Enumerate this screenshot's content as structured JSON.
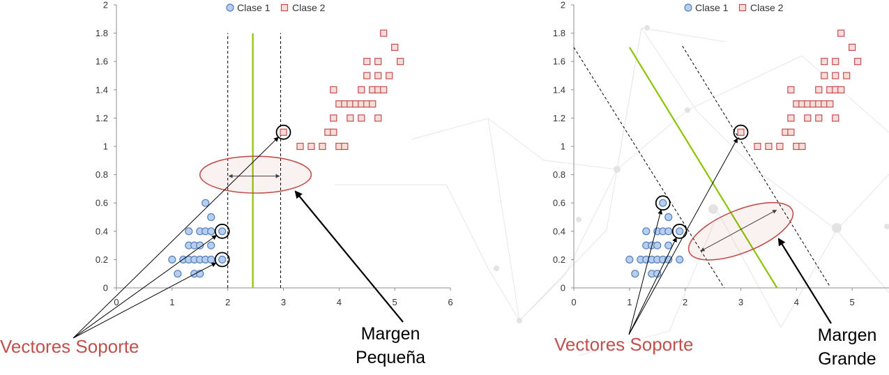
{
  "chart_data": [
    {
      "type": "scatter",
      "title": "",
      "xlabel": "",
      "ylabel": "",
      "xlim": [
        0,
        6
      ],
      "ylim": [
        0,
        2
      ],
      "x_ticks": [
        "0",
        "1",
        "2",
        "3",
        "4",
        "5",
        "6"
      ],
      "y_ticks": [
        "0",
        "0.2",
        "0.4",
        "0.6",
        "0.8",
        "1",
        "1.2",
        "1.4",
        "1.6",
        "1.8",
        "2"
      ],
      "grid": false,
      "legend": "top",
      "series": [
        {
          "name": "Clase 1",
          "color": "#4f81bd",
          "points": [
            [
              1.0,
              0.2
            ],
            [
              1.1,
              0.1
            ],
            [
              1.2,
              0.2
            ],
            [
              1.3,
              0.2
            ],
            [
              1.3,
              0.3
            ],
            [
              1.3,
              0.4
            ],
            [
              1.4,
              0.1
            ],
            [
              1.4,
              0.2
            ],
            [
              1.4,
              0.3
            ],
            [
              1.5,
              0.1
            ],
            [
              1.5,
              0.2
            ],
            [
              1.5,
              0.3
            ],
            [
              1.5,
              0.4
            ],
            [
              1.6,
              0.2
            ],
            [
              1.6,
              0.4
            ],
            [
              1.6,
              0.6
            ],
            [
              1.7,
              0.2
            ],
            [
              1.7,
              0.3
            ],
            [
              1.7,
              0.4
            ],
            [
              1.7,
              0.5
            ],
            [
              1.9,
              0.2
            ],
            [
              1.9,
              0.4
            ]
          ]
        },
        {
          "name": "Clase 2",
          "color": "#c0504d",
          "points": [
            [
              3.0,
              1.1
            ],
            [
              3.3,
              1.0
            ],
            [
              3.5,
              1.0
            ],
            [
              3.7,
              1.0
            ],
            [
              3.8,
              1.1
            ],
            [
              3.9,
              1.1
            ],
            [
              3.9,
              1.2
            ],
            [
              3.9,
              1.4
            ],
            [
              4.0,
              1.0
            ],
            [
              4.0,
              1.3
            ],
            [
              4.1,
              1.0
            ],
            [
              4.1,
              1.3
            ],
            [
              4.2,
              1.2
            ],
            [
              4.2,
              1.3
            ],
            [
              4.3,
              1.3
            ],
            [
              4.4,
              1.2
            ],
            [
              4.4,
              1.3
            ],
            [
              4.4,
              1.4
            ],
            [
              4.5,
              1.3
            ],
            [
              4.5,
              1.5
            ],
            [
              4.5,
              1.6
            ],
            [
              4.6,
              1.3
            ],
            [
              4.6,
              1.4
            ],
            [
              4.7,
              1.2
            ],
            [
              4.7,
              1.4
            ],
            [
              4.7,
              1.5
            ],
            [
              4.7,
              1.6
            ],
            [
              4.8,
              1.4
            ],
            [
              4.8,
              1.8
            ],
            [
              4.9,
              1.5
            ],
            [
              5.0,
              1.7
            ],
            [
              5.1,
              1.6
            ]
          ]
        }
      ],
      "annotations": {
        "decision_boundary": {
          "from": [
            2.45,
            0.0
          ],
          "to": [
            2.45,
            1.8
          ],
          "color": "#8bc400"
        },
        "margin_lines": [
          {
            "from": [
              2.0,
              0.0
            ],
            "to": [
              2.0,
              1.8
            ]
          },
          {
            "from": [
              2.95,
              0.0
            ],
            "to": [
              2.95,
              1.8
            ]
          }
        ],
        "margin_arrow": {
          "from": [
            2.02,
            0.79
          ],
          "to": [
            2.93,
            0.79
          ]
        },
        "margin_ellipse": {
          "center": [
            2.5,
            0.8
          ],
          "rx": 1.0,
          "ry": 0.13
        },
        "support_vector_circles": [
          [
            1.9,
            0.2
          ],
          [
            1.9,
            0.4
          ],
          [
            3.0,
            1.1
          ]
        ],
        "support_label": "Vectores Soporte",
        "margin_label": [
          "Margen",
          "Pequeña"
        ]
      }
    },
    {
      "type": "scatter",
      "title": "",
      "xlabel": "",
      "ylabel": "",
      "xlim": [
        0,
        6
      ],
      "ylim": [
        0,
        2
      ],
      "x_ticks": [
        "0",
        "1",
        "2",
        "3",
        "4",
        "5"
      ],
      "y_ticks": [
        "0",
        "0.2",
        "0.4",
        "0.6",
        "0.8",
        "1",
        "1.2",
        "1.4",
        "1.6",
        "1.8",
        "2"
      ],
      "grid": false,
      "legend": "top",
      "series": [
        {
          "name": "Clase 1",
          "color": "#4f81bd",
          "points": [
            [
              1.0,
              0.2
            ],
            [
              1.1,
              0.1
            ],
            [
              1.2,
              0.2
            ],
            [
              1.3,
              0.2
            ],
            [
              1.3,
              0.3
            ],
            [
              1.3,
              0.4
            ],
            [
              1.4,
              0.1
            ],
            [
              1.4,
              0.2
            ],
            [
              1.4,
              0.3
            ],
            [
              1.5,
              0.1
            ],
            [
              1.5,
              0.2
            ],
            [
              1.5,
              0.3
            ],
            [
              1.5,
              0.4
            ],
            [
              1.6,
              0.2
            ],
            [
              1.6,
              0.4
            ],
            [
              1.6,
              0.6
            ],
            [
              1.7,
              0.2
            ],
            [
              1.7,
              0.3
            ],
            [
              1.7,
              0.4
            ],
            [
              1.7,
              0.5
            ],
            [
              1.9,
              0.2
            ],
            [
              1.9,
              0.4
            ]
          ]
        },
        {
          "name": "Clase 2",
          "color": "#c0504d",
          "points": [
            [
              3.0,
              1.1
            ],
            [
              3.3,
              1.0
            ],
            [
              3.5,
              1.0
            ],
            [
              3.7,
              1.0
            ],
            [
              3.8,
              1.1
            ],
            [
              3.9,
              1.1
            ],
            [
              3.9,
              1.2
            ],
            [
              3.9,
              1.4
            ],
            [
              4.0,
              1.0
            ],
            [
              4.0,
              1.3
            ],
            [
              4.1,
              1.0
            ],
            [
              4.1,
              1.3
            ],
            [
              4.2,
              1.2
            ],
            [
              4.2,
              1.3
            ],
            [
              4.3,
              1.3
            ],
            [
              4.4,
              1.2
            ],
            [
              4.4,
              1.3
            ],
            [
              4.4,
              1.4
            ],
            [
              4.5,
              1.3
            ],
            [
              4.5,
              1.5
            ],
            [
              4.5,
              1.6
            ],
            [
              4.6,
              1.3
            ],
            [
              4.6,
              1.4
            ],
            [
              4.7,
              1.2
            ],
            [
              4.7,
              1.4
            ],
            [
              4.7,
              1.5
            ],
            [
              4.7,
              1.6
            ],
            [
              4.8,
              1.4
            ],
            [
              4.8,
              1.8
            ],
            [
              4.9,
              1.5
            ],
            [
              5.0,
              1.7
            ],
            [
              5.1,
              1.6
            ]
          ]
        }
      ],
      "annotations": {
        "decision_boundary": {
          "from": [
            1.0,
            1.7
          ],
          "to": [
            3.65,
            0.0
          ],
          "color": "#8bc400"
        },
        "margin_lines": [
          {
            "from": [
              0.0,
              1.7
            ],
            "to": [
              2.7,
              0.0
            ]
          },
          {
            "from": [
              1.95,
              1.71
            ],
            "to": [
              4.6,
              0.01
            ]
          }
        ],
        "margin_arrow": {
          "from": [
            2.28,
            0.26
          ],
          "to": [
            3.64,
            0.55
          ]
        },
        "margin_ellipse": {
          "center": [
            3.0,
            0.4
          ],
          "rx": 1.0,
          "ry": 0.15,
          "rotation": -22
        },
        "support_vector_circles": [
          [
            1.6,
            0.6
          ],
          [
            1.9,
            0.4
          ],
          [
            3.0,
            1.1
          ]
        ],
        "support_label": "Vectores Soporte",
        "margin_label": [
          "Margen",
          "Grande"
        ]
      }
    }
  ]
}
